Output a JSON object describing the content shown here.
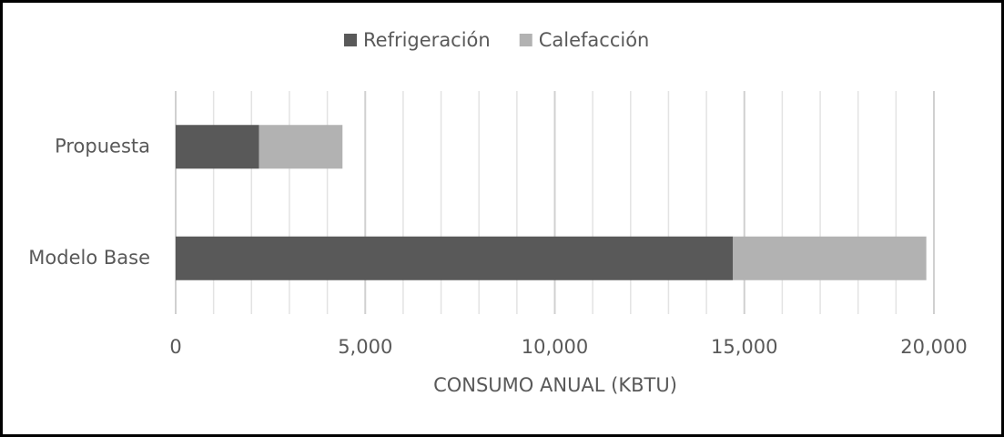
{
  "chart_data": {
    "type": "stacked-bar-horizontal",
    "categories": [
      "Modelo Base",
      "Propuesta"
    ],
    "series": [
      {
        "name": "Refrigeración",
        "color": "#595959",
        "values": [
          14700,
          2200
        ]
      },
      {
        "name": "Calefacción",
        "color": "#b2b2b2",
        "values": [
          5100,
          2200
        ]
      }
    ],
    "xlabel": "CONSUMO ANUAL (KBTU)",
    "xlim": [
      0,
      20000
    ],
    "xticks": [
      0,
      {
        "value": 5000,
        "label": "5,000"
      },
      {
        "value": 10000,
        "label": "10,000"
      },
      {
        "value": 15000,
        "label": "15,000"
      },
      {
        "value": 20000,
        "label": "20,000"
      }
    ],
    "xminorticks": [
      1000,
      2000,
      3000,
      4000,
      6000,
      7000,
      8000,
      9000,
      11000,
      12000,
      13000,
      14000,
      16000,
      17000,
      18000,
      19000
    ],
    "grid": true,
    "legend": "top"
  }
}
